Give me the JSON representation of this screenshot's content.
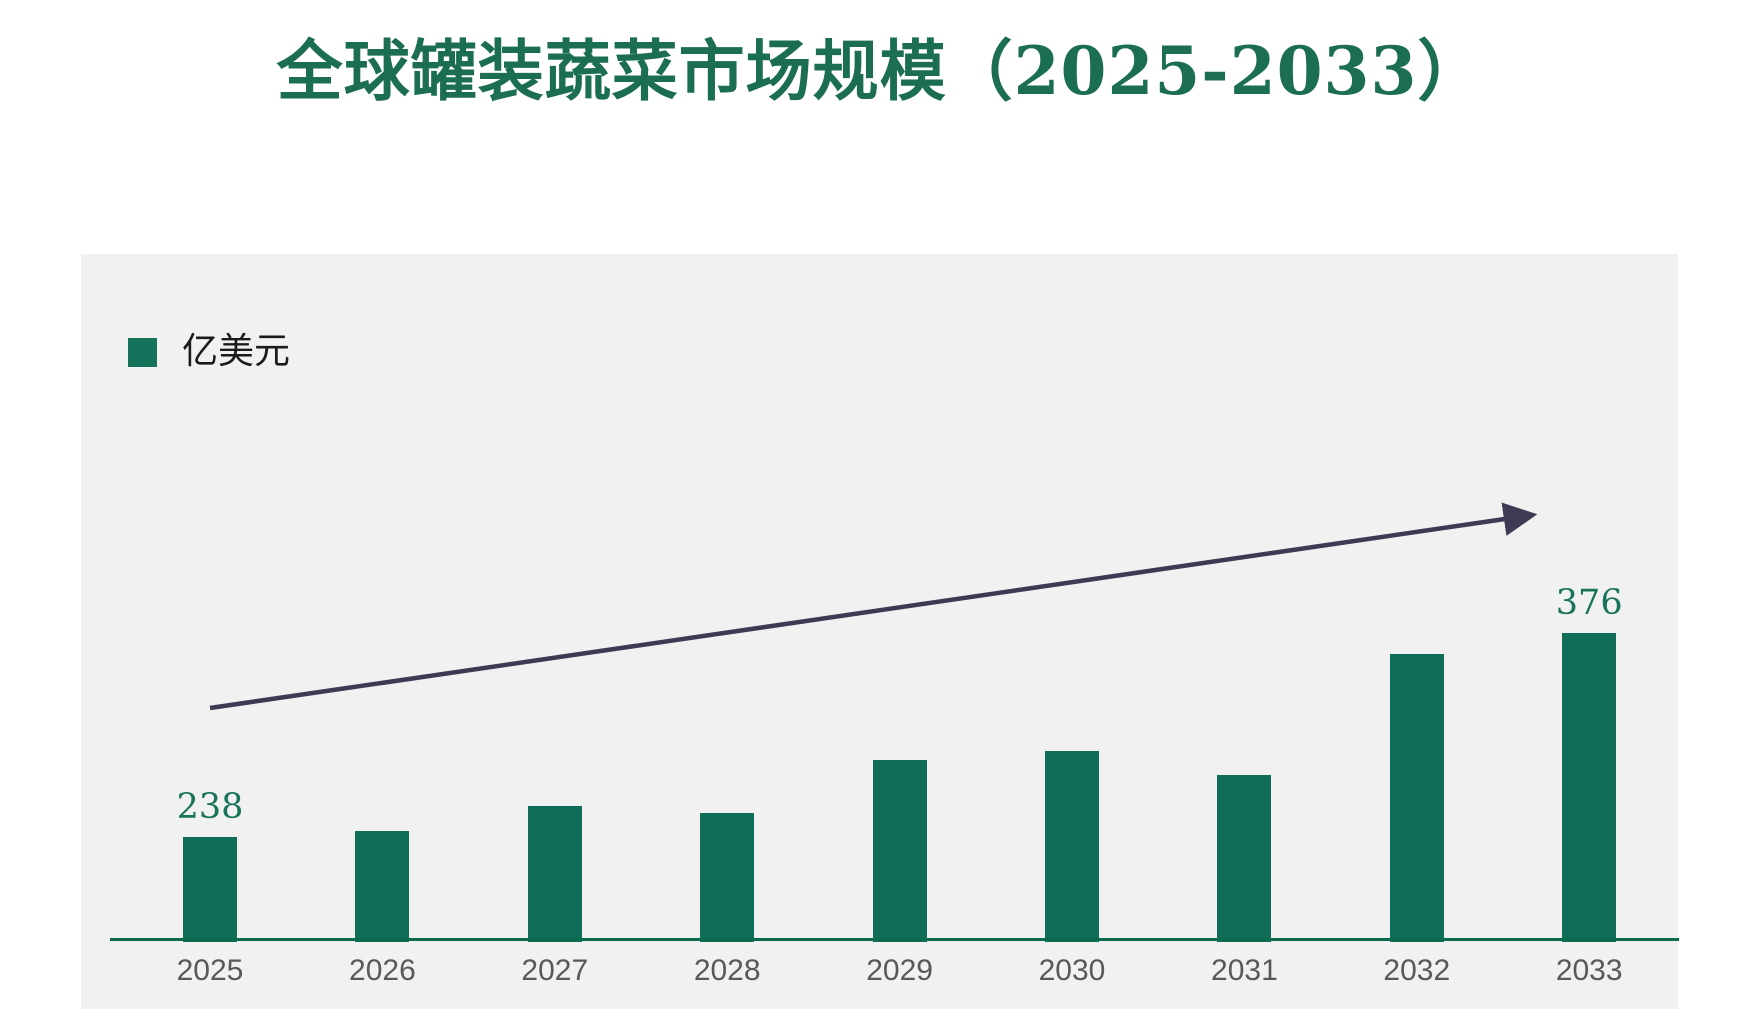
{
  "chart_data": {
    "type": "bar",
    "title": "全球罐装蔬菜市场规模（2025-2033）",
    "categories": [
      "2025",
      "2026",
      "2027",
      "2028",
      "2029",
      "2030",
      "2031",
      "2032",
      "2033"
    ],
    "values": [
      238,
      242,
      259,
      254,
      290,
      296,
      280,
      362,
      376
    ],
    "data_labels": {
      "2025": "238",
      "2033": "376"
    },
    "legend": [
      "亿美元"
    ],
    "legend_position": "top-left",
    "xlabel": "",
    "ylabel": "",
    "ylim": [
      167,
      420
    ],
    "grid": false,
    "y_axis_visible": false,
    "annotations": [
      {
        "type": "arrow",
        "description": "straight upward trend arrow rising left-to-right above the bars"
      }
    ]
  },
  "colors": {
    "title": "#1b6e52",
    "bar": "#106e58",
    "legend_swatch": "#15735c",
    "axis_line": "#0a6a4d",
    "arrow": "#3e3a54",
    "panel_background": "#f1f1f1",
    "year_label": "#595959",
    "value_label": "#17745a"
  }
}
